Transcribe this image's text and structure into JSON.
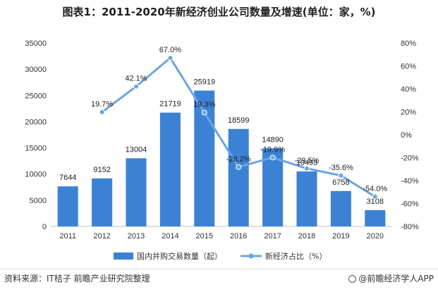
{
  "title": "图表1：2011-2020年新经济创业公司数量及增速(单位：家，%)",
  "source": "资料来源：IT桔子 前瞻产业研究院整理",
  "brand": "@前瞻经济学人APP",
  "colors": {
    "bar": "#3b82d4",
    "line": "#6aa5e3",
    "axis_text": "#333333"
  },
  "chart_data": {
    "type": "bar",
    "categories": [
      "2011",
      "2012",
      "2013",
      "2014",
      "2015",
      "2016",
      "2017",
      "2018",
      "2019",
      "2020"
    ],
    "series": [
      {
        "name": "国内并购交易数量（起）",
        "type": "bar",
        "axis": "left",
        "values": [
          7644,
          9152,
          13004,
          21719,
          25919,
          18599,
          14890,
          10493,
          6758,
          3108
        ],
        "labels": [
          "7644",
          "9152",
          "13004",
          "21719",
          "25919",
          "18599",
          "14890",
          "10493",
          "6758",
          "3108"
        ]
      },
      {
        "name": "新经济占比（%）",
        "type": "line",
        "axis": "right",
        "values": [
          null,
          19.7,
          42.1,
          67.0,
          19.3,
          -28.2,
          -19.9,
          -29.5,
          -35.6,
          -54.0
        ],
        "labels": [
          "",
          "19.7%",
          "42.1%",
          "67.0%",
          "19.3%",
          "-28.2%",
          "-19.9%",
          "-29.5%",
          "-35.6%",
          "-54.0%"
        ]
      }
    ],
    "ylim_left": [
      0,
      35000
    ],
    "yticks_left": [
      "0",
      "5000",
      "10000",
      "15000",
      "20000",
      "25000",
      "30000",
      "35000"
    ],
    "ylim_right": [
      -80,
      80
    ],
    "yticks_right": [
      "-80%",
      "-60%",
      "-40%",
      "-20%",
      "0%",
      "20%",
      "40%",
      "60%",
      "80%"
    ],
    "grid": false,
    "legend_position": "bottom"
  }
}
